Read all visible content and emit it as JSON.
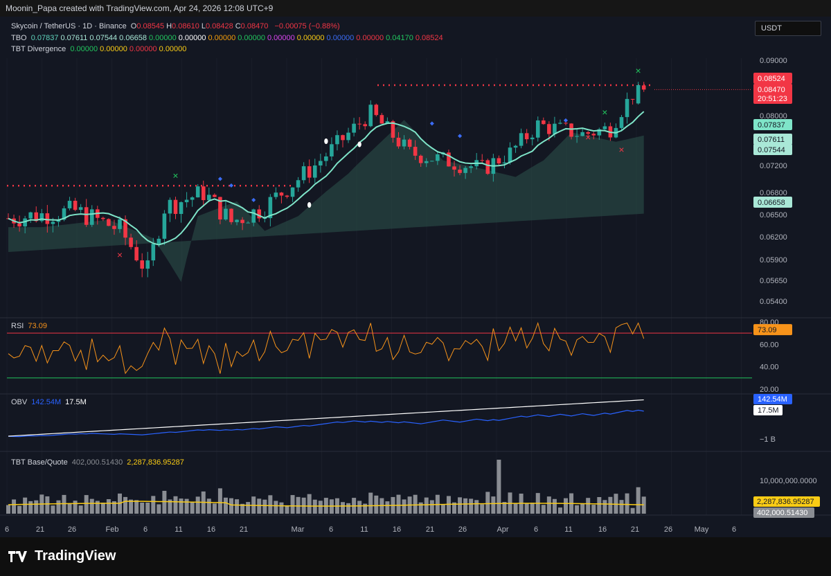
{
  "header": {
    "caption": "Moonin_Papa created with TradingView.com, Apr 24, 2026 12:08 UTC+9"
  },
  "legend": {
    "symbol": "Skycoin / TetherUS · 1D · Binance",
    "ohlc": [
      {
        "label": "O",
        "value": "0.08545"
      },
      {
        "label": "H",
        "value": "0.08610"
      },
      {
        "label": "L",
        "value": "0.08428"
      },
      {
        "label": "C",
        "value": "0.08470"
      }
    ],
    "change": "−0.00075 (−0.88%)",
    "tbo": {
      "label": "TBO",
      "values": [
        {
          "v": "0.07837",
          "color": "#5fd3bc"
        },
        {
          "v": "0.07611",
          "color": "#a9e8d7"
        },
        {
          "v": "0.07544",
          "color": "#a9e8d7"
        },
        {
          "v": "0.06658",
          "color": "#a9e8d7"
        },
        {
          "v": "0.00000",
          "color": "#22c55e"
        },
        {
          "v": "0.00000",
          "color": "#ffffff"
        },
        {
          "v": "0.00000",
          "color": "#f59e0b"
        },
        {
          "v": "0.00000",
          "color": "#22c55e"
        },
        {
          "v": "0.00000",
          "color": "#d946ef"
        },
        {
          "v": "0.00000",
          "color": "#facc15"
        },
        {
          "v": "0.00000",
          "color": "#3b6cf5"
        },
        {
          "v": "0.00000",
          "color": "#f23645"
        },
        {
          "v": "0.04170",
          "color": "#22c55e"
        },
        {
          "v": "0.08524",
          "color": "#f23645"
        }
      ]
    },
    "divergence": {
      "label": "TBT Divergence",
      "values": [
        {
          "v": "0.00000",
          "color": "#22c55e"
        },
        {
          "v": "0.00000",
          "color": "#facc15"
        },
        {
          "v": "0.00000",
          "color": "#f23645"
        },
        {
          "v": "0.00000",
          "color": "#facc15"
        }
      ]
    }
  },
  "currency": "USDT",
  "badges": {
    "price_a": "0.08524",
    "price_b": "0.08470",
    "countdown": "20:51:23",
    "tbo_fast": "0.07837",
    "tbo_mid1": "0.07611",
    "tbo_mid2": "0.07544",
    "tbo_slow": "0.06658"
  },
  "rsi": {
    "label": "RSI",
    "value": "73.09",
    "badge": "73.09"
  },
  "obv": {
    "label": "OBV",
    "value1": "142.54M",
    "value2": "17.5M",
    "badge1": "142.54M",
    "badge2": "17.5M",
    "tick": "−1 B"
  },
  "tbt_vol": {
    "label": "TBT Base/Quote",
    "value1": "402,000.51430",
    "value2": "2,287,836.95287",
    "tick": "10,000,000.0000",
    "badge1": "2,287,836.95287",
    "badge2": "402,000.51430"
  },
  "logo": {
    "text": "TradingView"
  },
  "chart_data": {
    "type": "candlestick",
    "price_ticks": [
      0.09,
      0.08,
      0.072,
      0.068,
      0.065,
      0.062,
      0.059,
      0.0565,
      0.054
    ],
    "price_tick_labels": [
      "0.09000",
      "0.08000",
      "0.07200",
      "0.06800",
      "0.06500",
      "0.06200",
      "0.05900",
      "0.05650",
      "0.05400"
    ],
    "x_tick_labels": [
      "6",
      "21",
      "26",
      "Feb",
      "6",
      "11",
      "16",
      "21",
      "Mar",
      "6",
      "11",
      "16",
      "21",
      "26",
      "Apr",
      "6",
      "11",
      "16",
      "21",
      "26",
      "May",
      "6"
    ],
    "rsi_ticks": [
      "80.00",
      "60.00",
      "40.00",
      "20.00"
    ],
    "rsi_levels": {
      "upper": 70,
      "lower": 30
    },
    "rsi_range": [
      20,
      80
    ],
    "last_close": 0.0847,
    "colors": {
      "up": "#26a69a",
      "down": "#f23645",
      "tbo_fast": "#7fe5c9",
      "rsi": "#f7931a",
      "obv": "#2962ff",
      "obv_ma": "#ffffff",
      "vol": "#8a8d93",
      "vol_ma": "#facc15"
    }
  }
}
